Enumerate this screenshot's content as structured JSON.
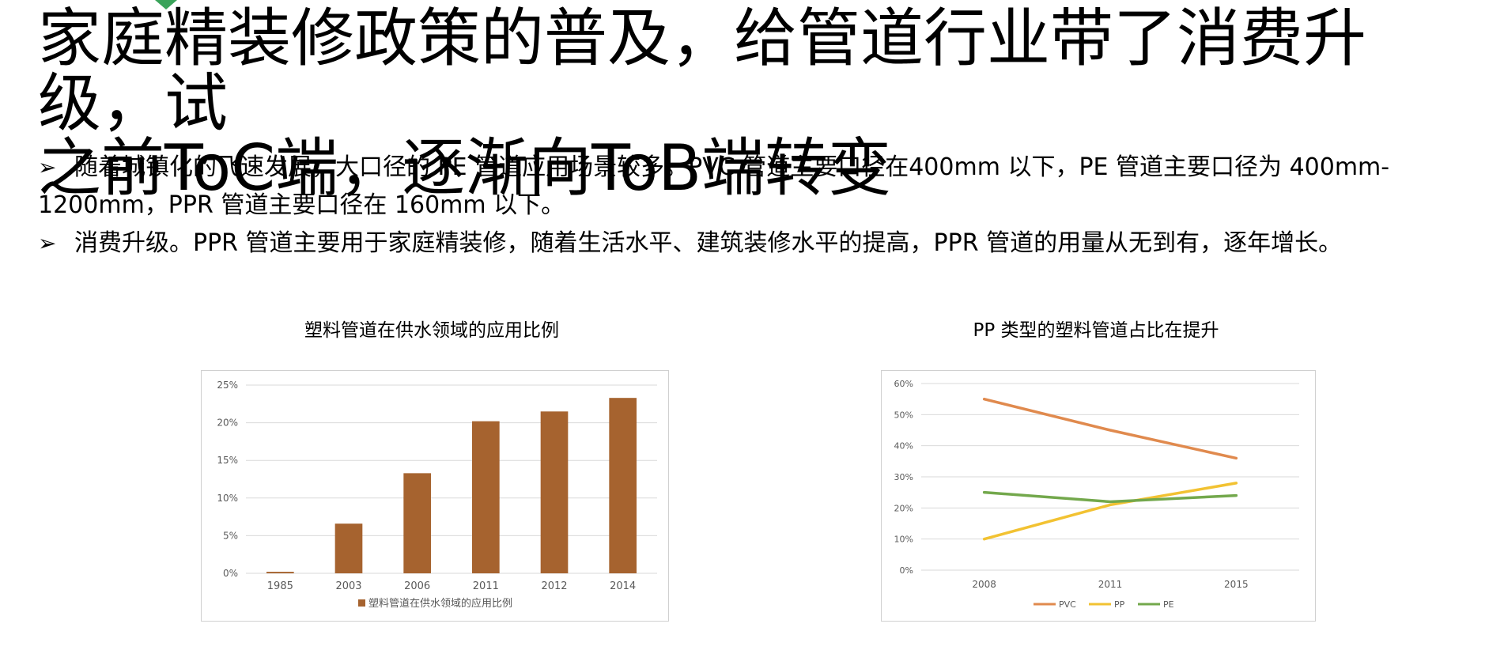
{
  "slide": {
    "title_line1": "家庭精装修政策的普及，给管道行业带了消费升级，试",
    "title_line2": "之前ToC端，逐渐向ToB端转变",
    "bullet_marker": "➢",
    "bullets": [
      "随着城镇化的飞速发展，大口径的 PE 管道应用场景较多。PVC 管道主要口径在400mm 以下，PE 管道主要口径为 400mm-1200mm，PPR 管道主要口径在 160mm 以下。",
      "消费升级。PPR 管道主要用于家庭精装修，随着生活水平、建筑装修水平的提高，PPR 管道的用量从无到有，逐年增长。"
    ],
    "accent_color": "#3aa35a"
  },
  "chart_data": [
    {
      "type": "bar",
      "title": "塑料管道在供水领域的应用比例",
      "categories": [
        "1985",
        "2003",
        "2006",
        "2011",
        "2012",
        "2014"
      ],
      "series": [
        {
          "name": "塑料管道在供水领域的应用比例",
          "values": [
            0.2,
            6.6,
            13.3,
            20.2,
            21.5,
            23.3
          ],
          "color": "#a6632f"
        }
      ],
      "yticks": [
        "0%",
        "5%",
        "10%",
        "15%",
        "20%",
        "25%"
      ],
      "ylim": [
        0,
        25
      ],
      "grid": true,
      "legend": "bottom"
    },
    {
      "type": "line",
      "title": "PP 类型的塑料管道占比在提升",
      "categories": [
        "2008",
        "2011",
        "2015"
      ],
      "series": [
        {
          "name": "PVC",
          "values": [
            55,
            45,
            36
          ],
          "color": "#e08a4e"
        },
        {
          "name": "PP",
          "values": [
            10,
            21,
            28
          ],
          "color": "#f2c232"
        },
        {
          "name": "PE",
          "values": [
            25,
            22,
            24
          ],
          "color": "#73a84c"
        }
      ],
      "yticks": [
        "0%",
        "10%",
        "20%",
        "30%",
        "40%",
        "50%",
        "60%"
      ],
      "ylim": [
        0,
        60
      ],
      "grid": true,
      "legend": "bottom"
    }
  ]
}
